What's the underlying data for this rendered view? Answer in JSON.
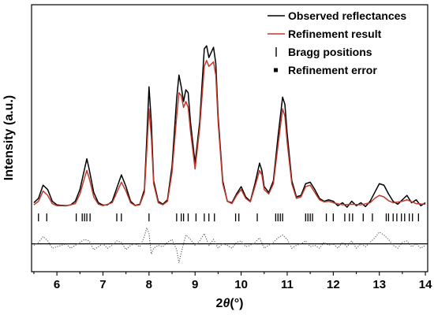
{
  "chart_data": {
    "type": "line",
    "xlabel_prefix": "2",
    "xlabel_symbol": "θ",
    "xlabel_unit": "(°)",
    "ylabel": "Intensity (a.u.)",
    "xlim": [
      5.45,
      14.05
    ],
    "ylim": [
      -2.1,
      7.0
    ],
    "x_ticks": [
      6,
      7,
      8,
      9,
      10,
      11,
      12,
      13,
      14
    ],
    "legend": [
      {
        "label": "Observed reflectances",
        "marker": "line",
        "color": "#000000"
      },
      {
        "label": "Refinement result",
        "marker": "line",
        "color": "#c0392b"
      },
      {
        "label": "Bragg positions",
        "marker": "bar",
        "color": "#000000"
      },
      {
        "label": "Refinement error",
        "marker": "square",
        "color": "#000000"
      }
    ],
    "colors": {
      "observed": "#000000",
      "refined": "#c0392b",
      "bragg": "#000000",
      "error": "#555555",
      "zero_line": "#000000"
    },
    "series": [
      {
        "name": "Observed reflectances",
        "points": [
          [
            5.5,
            0.25
          ],
          [
            5.6,
            0.4
          ],
          [
            5.7,
            0.85
          ],
          [
            5.8,
            0.7
          ],
          [
            5.9,
            0.3
          ],
          [
            6.0,
            0.18
          ],
          [
            6.1,
            0.16
          ],
          [
            6.2,
            0.15
          ],
          [
            6.3,
            0.18
          ],
          [
            6.4,
            0.3
          ],
          [
            6.5,
            0.7
          ],
          [
            6.6,
            1.4
          ],
          [
            6.65,
            1.75
          ],
          [
            6.7,
            1.4
          ],
          [
            6.8,
            0.6
          ],
          [
            6.9,
            0.25
          ],
          [
            7.0,
            0.17
          ],
          [
            7.1,
            0.18
          ],
          [
            7.2,
            0.3
          ],
          [
            7.3,
            0.75
          ],
          [
            7.4,
            1.2
          ],
          [
            7.5,
            0.8
          ],
          [
            7.6,
            0.3
          ],
          [
            7.7,
            0.16
          ],
          [
            7.8,
            0.2
          ],
          [
            7.9,
            0.7
          ],
          [
            7.95,
            2.4
          ],
          [
            8.0,
            4.2
          ],
          [
            8.05,
            3.0
          ],
          [
            8.1,
            1.0
          ],
          [
            8.2,
            0.3
          ],
          [
            8.3,
            0.2
          ],
          [
            8.4,
            0.35
          ],
          [
            8.5,
            1.5
          ],
          [
            8.6,
            3.8
          ],
          [
            8.65,
            4.6
          ],
          [
            8.7,
            4.2
          ],
          [
            8.75,
            3.7
          ],
          [
            8.8,
            4.1
          ],
          [
            8.85,
            4.0
          ],
          [
            8.9,
            3.0
          ],
          [
            9.0,
            1.6
          ],
          [
            9.1,
            3.0
          ],
          [
            9.2,
            5.5
          ],
          [
            9.25,
            5.6
          ],
          [
            9.3,
            5.2
          ],
          [
            9.4,
            5.55
          ],
          [
            9.45,
            5.0
          ],
          [
            9.5,
            3.2
          ],
          [
            9.6,
            1.0
          ],
          [
            9.7,
            0.3
          ],
          [
            9.8,
            0.25
          ],
          [
            9.9,
            0.55
          ],
          [
            10.0,
            0.8
          ],
          [
            10.1,
            0.45
          ],
          [
            10.2,
            0.3
          ],
          [
            10.3,
            0.9
          ],
          [
            10.4,
            1.6
          ],
          [
            10.45,
            1.35
          ],
          [
            10.5,
            0.8
          ],
          [
            10.6,
            0.6
          ],
          [
            10.7,
            1.0
          ],
          [
            10.8,
            2.5
          ],
          [
            10.9,
            3.85
          ],
          [
            10.95,
            3.6
          ],
          [
            11.0,
            2.6
          ],
          [
            11.1,
            1.0
          ],
          [
            11.2,
            0.45
          ],
          [
            11.3,
            0.5
          ],
          [
            11.4,
            0.9
          ],
          [
            11.5,
            0.95
          ],
          [
            11.6,
            0.7
          ],
          [
            11.7,
            0.4
          ],
          [
            11.8,
            0.3
          ],
          [
            11.9,
            0.35
          ],
          [
            12.0,
            0.3
          ],
          [
            12.1,
            0.15
          ],
          [
            12.2,
            0.25
          ],
          [
            12.3,
            0.1
          ],
          [
            12.4,
            0.3
          ],
          [
            12.5,
            0.15
          ],
          [
            12.6,
            0.25
          ],
          [
            12.7,
            0.12
          ],
          [
            12.8,
            0.3
          ],
          [
            12.9,
            0.6
          ],
          [
            13.0,
            0.9
          ],
          [
            13.1,
            0.85
          ],
          [
            13.2,
            0.55
          ],
          [
            13.3,
            0.3
          ],
          [
            13.4,
            0.2
          ],
          [
            13.5,
            0.35
          ],
          [
            13.6,
            0.5
          ],
          [
            13.7,
            0.25
          ],
          [
            13.8,
            0.35
          ],
          [
            13.9,
            0.15
          ],
          [
            14.0,
            0.25
          ]
        ]
      },
      {
        "name": "Refinement result",
        "points": [
          [
            5.5,
            0.18
          ],
          [
            5.6,
            0.3
          ],
          [
            5.7,
            0.65
          ],
          [
            5.8,
            0.5
          ],
          [
            5.9,
            0.22
          ],
          [
            6.0,
            0.15
          ],
          [
            6.2,
            0.14
          ],
          [
            6.4,
            0.22
          ],
          [
            6.5,
            0.55
          ],
          [
            6.6,
            1.1
          ],
          [
            6.65,
            1.35
          ],
          [
            6.7,
            1.1
          ],
          [
            6.8,
            0.45
          ],
          [
            6.9,
            0.2
          ],
          [
            7.0,
            0.15
          ],
          [
            7.2,
            0.25
          ],
          [
            7.3,
            0.6
          ],
          [
            7.4,
            0.95
          ],
          [
            7.5,
            0.65
          ],
          [
            7.6,
            0.25
          ],
          [
            7.7,
            0.15
          ],
          [
            7.8,
            0.18
          ],
          [
            7.9,
            0.6
          ],
          [
            7.95,
            2.0
          ],
          [
            8.0,
            3.45
          ],
          [
            8.05,
            2.5
          ],
          [
            8.1,
            0.9
          ],
          [
            8.2,
            0.25
          ],
          [
            8.3,
            0.18
          ],
          [
            8.4,
            0.3
          ],
          [
            8.5,
            1.3
          ],
          [
            8.6,
            3.2
          ],
          [
            8.65,
            4.0
          ],
          [
            8.7,
            3.9
          ],
          [
            8.75,
            3.5
          ],
          [
            8.8,
            3.7
          ],
          [
            8.85,
            3.5
          ],
          [
            8.9,
            2.7
          ],
          [
            9.0,
            1.4
          ],
          [
            9.1,
            2.8
          ],
          [
            9.2,
            4.9
          ],
          [
            9.25,
            5.1
          ],
          [
            9.3,
            4.9
          ],
          [
            9.4,
            5.05
          ],
          [
            9.45,
            4.6
          ],
          [
            9.5,
            3.0
          ],
          [
            9.6,
            0.9
          ],
          [
            9.7,
            0.3
          ],
          [
            9.8,
            0.22
          ],
          [
            9.9,
            0.5
          ],
          [
            10.0,
            0.7
          ],
          [
            10.1,
            0.4
          ],
          [
            10.2,
            0.28
          ],
          [
            10.3,
            0.8
          ],
          [
            10.4,
            1.35
          ],
          [
            10.45,
            1.2
          ],
          [
            10.5,
            0.7
          ],
          [
            10.6,
            0.55
          ],
          [
            10.7,
            0.9
          ],
          [
            10.8,
            2.2
          ],
          [
            10.9,
            3.45
          ],
          [
            10.95,
            3.2
          ],
          [
            11.0,
            2.3
          ],
          [
            11.1,
            0.9
          ],
          [
            11.2,
            0.4
          ],
          [
            11.3,
            0.45
          ],
          [
            11.4,
            0.8
          ],
          [
            11.5,
            0.85
          ],
          [
            11.6,
            0.6
          ],
          [
            11.7,
            0.35
          ],
          [
            11.8,
            0.28
          ],
          [
            11.9,
            0.3
          ],
          [
            12.0,
            0.25
          ],
          [
            12.2,
            0.18
          ],
          [
            12.4,
            0.2
          ],
          [
            12.6,
            0.18
          ],
          [
            12.8,
            0.25
          ],
          [
            12.9,
            0.4
          ],
          [
            13.0,
            0.5
          ],
          [
            13.1,
            0.45
          ],
          [
            13.2,
            0.32
          ],
          [
            13.3,
            0.25
          ],
          [
            13.5,
            0.3
          ],
          [
            13.6,
            0.35
          ],
          [
            13.8,
            0.22
          ],
          [
            14.0,
            0.2
          ]
        ]
      },
      {
        "name": "Bragg positions",
        "positions": [
          5.6,
          5.78,
          6.42,
          6.55,
          6.6,
          6.65,
          6.72,
          7.3,
          7.4,
          8.0,
          8.6,
          8.7,
          8.75,
          8.85,
          9.02,
          9.2,
          9.3,
          9.42,
          9.88,
          9.95,
          10.35,
          10.75,
          10.8,
          10.85,
          10.9,
          11.4,
          11.45,
          11.5,
          11.55,
          11.85,
          12.0,
          12.25,
          12.35,
          12.42,
          12.65,
          12.85,
          13.15,
          13.2,
          13.3,
          13.38,
          13.48,
          13.55,
          13.65,
          13.72,
          13.85
        ]
      },
      {
        "name": "Refinement error",
        "points": [
          [
            5.5,
            -1.2
          ],
          [
            5.6,
            -1.1
          ],
          [
            5.7,
            -0.9
          ],
          [
            5.8,
            -1.05
          ],
          [
            5.9,
            -1.3
          ],
          [
            6.0,
            -1.25
          ],
          [
            6.1,
            -1.2
          ],
          [
            6.2,
            -1.15
          ],
          [
            6.3,
            -1.3
          ],
          [
            6.4,
            -1.2
          ],
          [
            6.5,
            -1.1
          ],
          [
            6.6,
            -1.0
          ],
          [
            6.7,
            -1.05
          ],
          [
            6.8,
            -1.35
          ],
          [
            6.9,
            -1.25
          ],
          [
            7.0,
            -1.15
          ],
          [
            7.1,
            -1.3
          ],
          [
            7.2,
            -1.2
          ],
          [
            7.3,
            -1.05
          ],
          [
            7.4,
            -1.1
          ],
          [
            7.5,
            -1.35
          ],
          [
            7.6,
            -1.2
          ],
          [
            7.7,
            -1.15
          ],
          [
            7.8,
            -1.25
          ],
          [
            7.9,
            -0.9
          ],
          [
            7.95,
            -0.6
          ],
          [
            8.0,
            -0.8
          ],
          [
            8.05,
            -1.5
          ],
          [
            8.1,
            -1.3
          ],
          [
            8.2,
            -1.2
          ],
          [
            8.3,
            -1.25
          ],
          [
            8.4,
            -1.1
          ],
          [
            8.5,
            -1.0
          ],
          [
            8.6,
            -1.35
          ],
          [
            8.65,
            -1.8
          ],
          [
            8.7,
            -1.45
          ],
          [
            8.8,
            -0.85
          ],
          [
            8.9,
            -1.0
          ],
          [
            9.0,
            -1.2
          ],
          [
            9.1,
            -1.05
          ],
          [
            9.2,
            -0.8
          ],
          [
            9.3,
            -1.2
          ],
          [
            9.4,
            -1.0
          ],
          [
            9.5,
            -1.3
          ],
          [
            9.6,
            -1.15
          ],
          [
            9.7,
            -1.2
          ],
          [
            9.8,
            -1.3
          ],
          [
            9.9,
            -1.1
          ],
          [
            10.0,
            -1.05
          ],
          [
            10.1,
            -1.25
          ],
          [
            10.2,
            -1.2
          ],
          [
            10.3,
            -1.1
          ],
          [
            10.4,
            -0.95
          ],
          [
            10.5,
            -1.3
          ],
          [
            10.6,
            -1.2
          ],
          [
            10.7,
            -1.1
          ],
          [
            10.8,
            -0.95
          ],
          [
            10.9,
            -0.85
          ],
          [
            11.0,
            -1.0
          ],
          [
            11.1,
            -1.3
          ],
          [
            11.2,
            -1.2
          ],
          [
            11.3,
            -1.15
          ],
          [
            11.4,
            -1.05
          ],
          [
            11.5,
            -1.25
          ],
          [
            11.6,
            -1.2
          ],
          [
            11.7,
            -1.3
          ],
          [
            11.8,
            -1.1
          ],
          [
            11.9,
            -1.2
          ],
          [
            12.0,
            -1.15
          ],
          [
            12.1,
            -1.3
          ],
          [
            12.2,
            -1.1
          ],
          [
            12.3,
            -1.25
          ],
          [
            12.4,
            -1.05
          ],
          [
            12.5,
            -1.3
          ],
          [
            12.6,
            -1.15
          ],
          [
            12.7,
            -1.25
          ],
          [
            12.8,
            -1.1
          ],
          [
            12.9,
            -0.95
          ],
          [
            13.0,
            -0.75
          ],
          [
            13.1,
            -0.85
          ],
          [
            13.2,
            -1.0
          ],
          [
            13.3,
            -1.2
          ],
          [
            13.4,
            -1.3
          ],
          [
            13.5,
            -1.1
          ],
          [
            13.6,
            -1.05
          ],
          [
            13.7,
            -1.25
          ],
          [
            13.8,
            -1.15
          ],
          [
            13.9,
            -1.3
          ],
          [
            14.0,
            -1.2
          ]
        ]
      }
    ],
    "error_zero": -1.15,
    "grid": false,
    "legend_position": "top-right"
  }
}
